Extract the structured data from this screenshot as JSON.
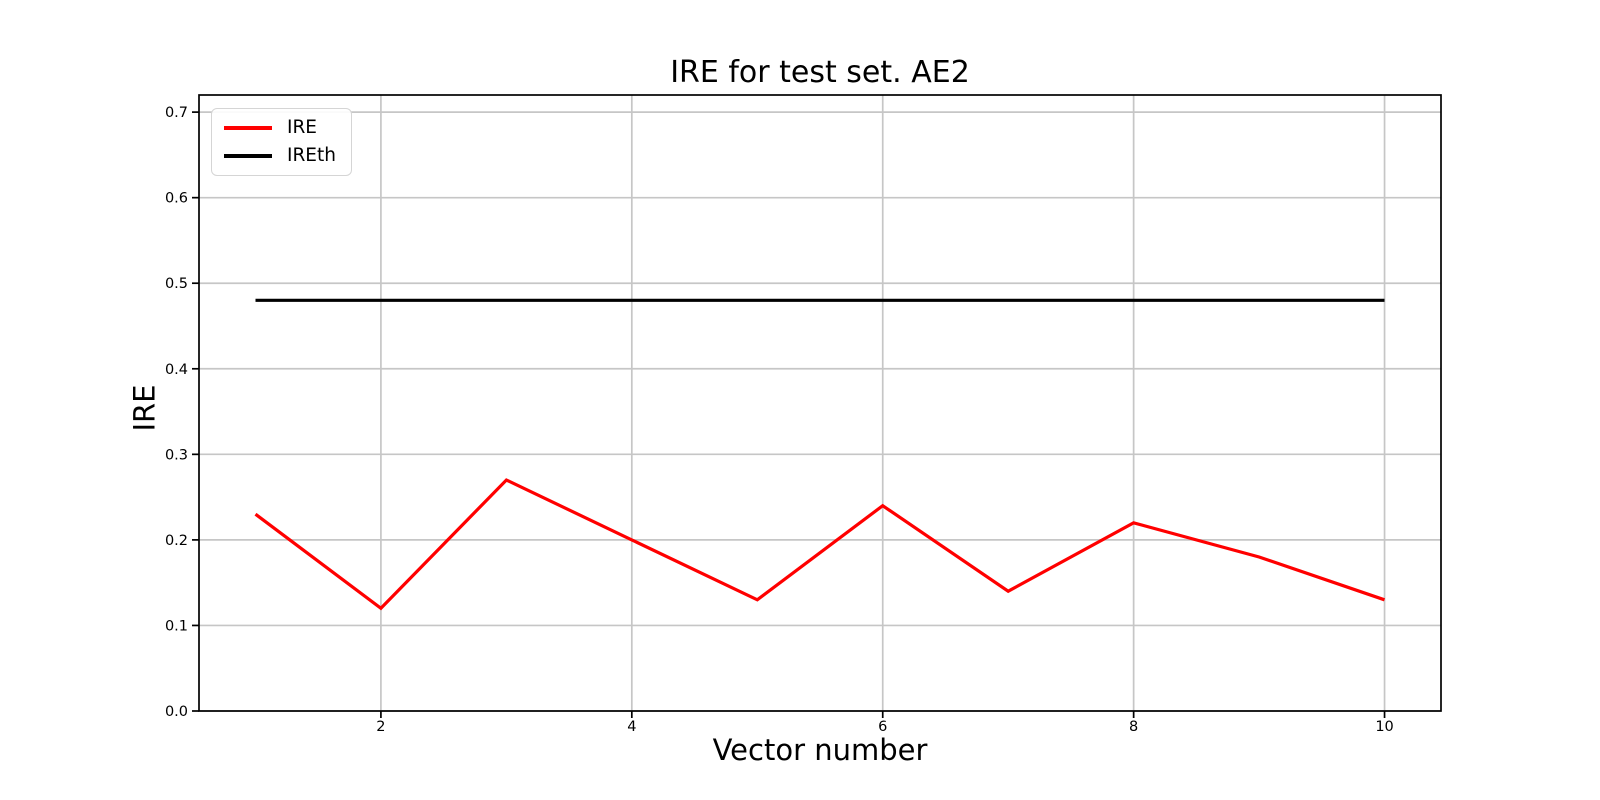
{
  "chart_data": {
    "type": "line",
    "title": "IRE for test set. AE2",
    "xlabel": "Vector number",
    "ylabel": "IRE",
    "x": [
      1,
      2,
      3,
      4,
      5,
      6,
      7,
      8,
      9,
      10
    ],
    "series": [
      {
        "name": "IRE",
        "color": "#ff0000",
        "values": [
          0.23,
          0.12,
          0.27,
          0.2,
          0.13,
          0.24,
          0.14,
          0.22,
          0.18,
          0.13
        ]
      },
      {
        "name": "IREth",
        "color": "#000000",
        "values": [
          0.48,
          0.48,
          0.48,
          0.48,
          0.48,
          0.48,
          0.48,
          0.48,
          0.48,
          0.48
        ]
      }
    ],
    "xlim": [
      0.55,
      10.45
    ],
    "ylim": [
      0,
      0.72
    ],
    "x_ticks": [
      2,
      4,
      6,
      8,
      10
    ],
    "x_tick_labels": [
      "2",
      "4",
      "6",
      "8",
      "10"
    ],
    "y_ticks": [
      0.0,
      0.1,
      0.2,
      0.3,
      0.4,
      0.5,
      0.6,
      0.7
    ],
    "y_tick_labels": [
      "0.0",
      "0.1",
      "0.2",
      "0.3",
      "0.4",
      "0.5",
      "0.6",
      "0.7"
    ],
    "grid": true,
    "grid_color": "#c6c6c6",
    "axis_color": "#000000",
    "background_color": "#ffffff",
    "legend_position": "upper left"
  }
}
